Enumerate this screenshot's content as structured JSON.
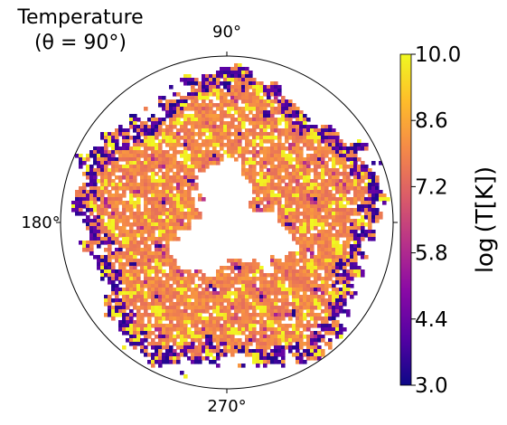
{
  "chart_data": {
    "type": "heatmap",
    "projection": "polar",
    "title": "Temperature",
    "subtitle": "(θ = 90°)",
    "angular_ticks": [
      "90°",
      "180°",
      "270°"
    ],
    "colorbar": {
      "label": "log (T[K])",
      "range": [
        3.0,
        10.0
      ],
      "ticks": [
        3.0,
        4.4,
        5.8,
        7.2,
        8.6,
        10.0
      ],
      "tick_labels": [
        "3.0",
        "4.4",
        "5.8",
        "7.2",
        "8.6",
        "10.0"
      ],
      "colormap": "plasma",
      "colors": [
        "#0d0887",
        "#5302a3",
        "#8b0aa5",
        "#b83289",
        "#db5c68",
        "#f48849",
        "#febd2a",
        "#f0f921"
      ]
    },
    "field_description_values": {
      "inner_void_radius_fraction": 0.3,
      "outer_radius_fraction": 0.95,
      "dominant_log_T": 8.0,
      "cold_filament_log_T": 3.2
    }
  }
}
